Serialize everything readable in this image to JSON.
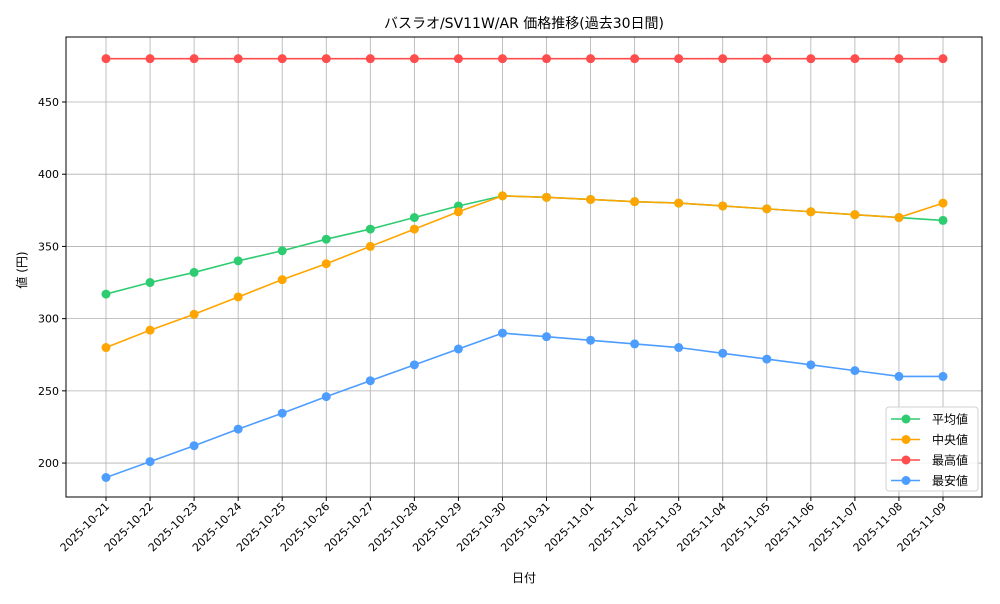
{
  "chart_data": {
    "type": "line",
    "title": "バスラオ/SV11W/AR 価格推移(過去30日間)",
    "xlabel": "日付",
    "ylabel": "値 (円)",
    "ylim": [
      176.5,
      495
    ],
    "yticks": [
      200,
      250,
      300,
      350,
      400,
      450
    ],
    "grid": true,
    "legend_placement": "lower-right",
    "categories": [
      "2025-10-21",
      "2025-10-22",
      "2025-10-23",
      "2025-10-24",
      "2025-10-25",
      "2025-10-26",
      "2025-10-27",
      "2025-10-28",
      "2025-10-29",
      "2025-10-30",
      "2025-10-31",
      "2025-11-01",
      "2025-11-02",
      "2025-11-03",
      "2025-11-04",
      "2025-11-05",
      "2025-11-06",
      "2025-11-07",
      "2025-11-08",
      "2025-11-09"
    ],
    "series": [
      {
        "name": "平均値",
        "color": "#2ecc71",
        "values": [
          317,
          325,
          332,
          340,
          347,
          355,
          362,
          370,
          378,
          385,
          384,
          382.5,
          381,
          380,
          378,
          376,
          374,
          372,
          370,
          368
        ]
      },
      {
        "name": "中央値",
        "color": "#ffa500",
        "values": [
          280,
          292,
          303,
          315,
          327,
          338,
          350,
          362,
          374,
          385,
          384,
          382.5,
          381,
          380,
          378,
          376,
          374,
          372,
          370,
          380
        ]
      },
      {
        "name": "最高値",
        "color": "#ff4d4d",
        "values": [
          480,
          480,
          480,
          480,
          480,
          480,
          480,
          480,
          480,
          480,
          480,
          480,
          480,
          480,
          480,
          480,
          480,
          480,
          480,
          480
        ]
      },
      {
        "name": "最安値",
        "color": "#4d9dff",
        "values": [
          190,
          201,
          212,
          223.5,
          234.5,
          246,
          257,
          268,
          279,
          290,
          287.5,
          285,
          282.5,
          280,
          276,
          272,
          268,
          264,
          260,
          260
        ]
      }
    ]
  }
}
